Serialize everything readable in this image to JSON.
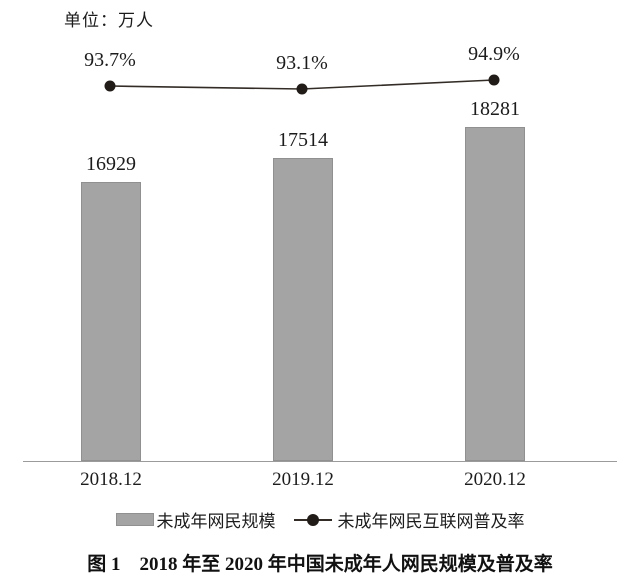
{
  "unit_label": "单位：万人",
  "caption": "图 1　2018 年至 2020 年中国未成年人网民规模及普及率",
  "legend": {
    "bar_label": "未成年网民规模",
    "line_label": "未成年网民互联网普及率"
  },
  "chart_data": {
    "type": "bar",
    "title": "图 1　2018 年至 2020 年中国未成年人网民规模及普及率",
    "unit_note": "单位：万人",
    "categories": [
      "2018.12",
      "2019.12",
      "2020.12"
    ],
    "series": [
      {
        "name": "未成年网民规模",
        "type": "bar",
        "unit": "万人",
        "values": [
          16929,
          17514,
          18281
        ],
        "value_labels": [
          "16929",
          "17514",
          "18281"
        ],
        "color": "#a4a4a4"
      },
      {
        "name": "未成年网民互联网普及率",
        "type": "line",
        "unit": "%",
        "values": [
          93.7,
          93.1,
          94.9
        ],
        "value_labels": [
          "93.7%",
          "93.1%",
          "94.9%"
        ],
        "color": "#332c26"
      }
    ],
    "xlabel": "",
    "ylabel": "",
    "grid": false,
    "legend_position": "bottom",
    "bar_axis_visible": false,
    "bar_axis_baseline_value": 10000
  },
  "colors": {
    "bar_fill": "#a4a4a4",
    "bar_border": "#909090",
    "line": "#332c26",
    "dot": "#221c18",
    "axis": "#9b9b9b",
    "text": "#1c1c1c",
    "background": "#ffffff"
  }
}
